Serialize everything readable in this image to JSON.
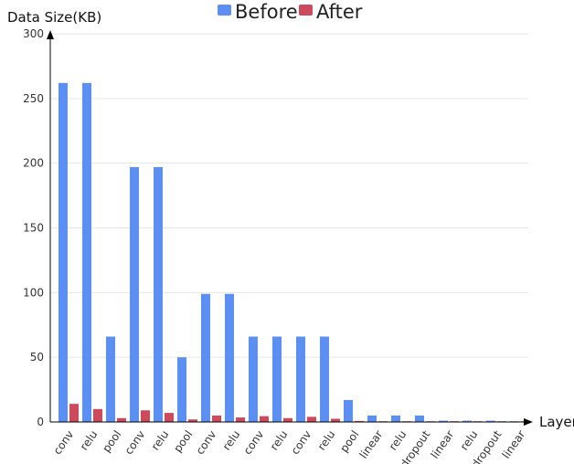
{
  "chart_data": {
    "type": "bar",
    "title": "",
    "ylabel": "Data Size(KB)",
    "xlabel": "Layer",
    "ylim": [
      0,
      300
    ],
    "yticks": [
      0,
      50,
      100,
      150,
      200,
      250,
      300
    ],
    "grid": true,
    "legend_position": "top-center",
    "categories": [
      "conv",
      "relu",
      "pool",
      "conv",
      "relu",
      "pool",
      "conv",
      "relu",
      "conv",
      "relu",
      "conv",
      "relu",
      "pool",
      "linear",
      "relu",
      "dropout",
      "linear",
      "relu",
      "dropout",
      "linear"
    ],
    "series": [
      {
        "name": "Before",
        "color": "#5b8ff2",
        "values": [
          262,
          262,
          66,
          197,
          197,
          50,
          99,
          99,
          66,
          66,
          66,
          66,
          17,
          5,
          5,
          5,
          1,
          1,
          1,
          0.3
        ]
      },
      {
        "name": "After",
        "color": "#cc4a5c",
        "values": [
          14,
          10,
          3,
          9,
          7,
          2,
          5,
          3.5,
          4.5,
          3,
          4,
          2.5,
          0.8,
          0.5,
          0.5,
          0.5,
          0.2,
          0.2,
          0.2,
          0.1
        ]
      }
    ]
  }
}
